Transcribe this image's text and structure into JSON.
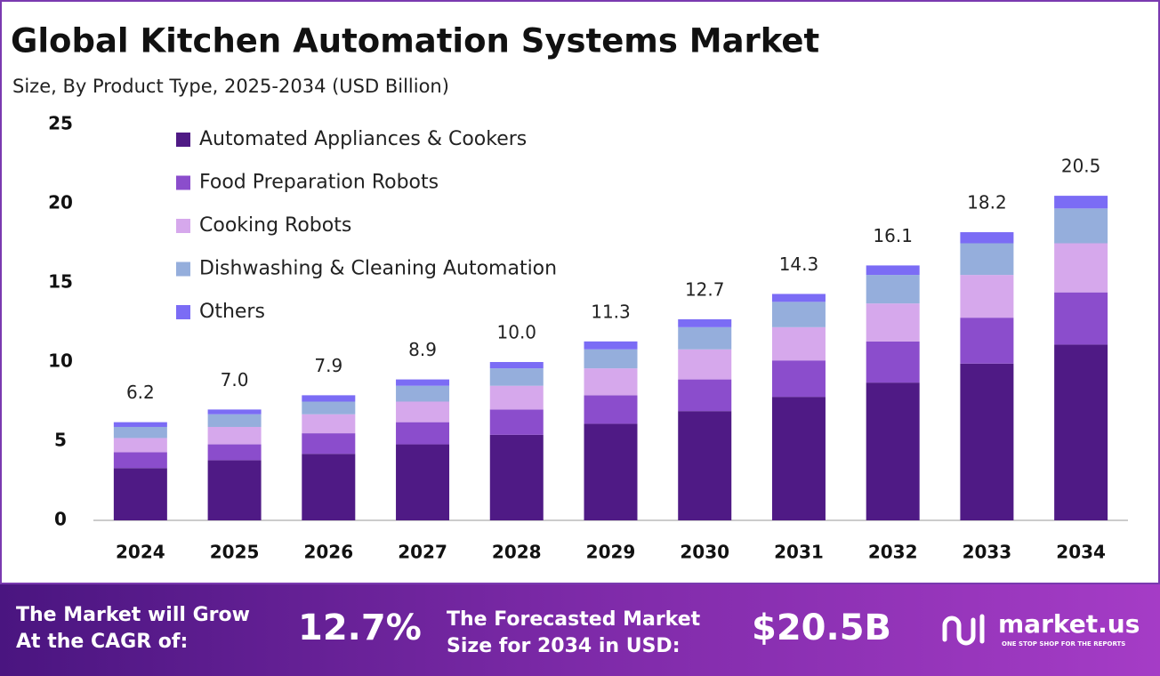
{
  "chart_data": {
    "type": "stacked_bar",
    "title": "Global Kitchen Automation Systems Market",
    "subtitle": "Size, By Product Type, 2025-2034 (USD Billion)",
    "categories": [
      "2024",
      "2025",
      "2026",
      "2027",
      "2028",
      "2029",
      "2030",
      "2031",
      "2032",
      "2033",
      "2034"
    ],
    "series": [
      {
        "name": "Automated Appliances & Cookers",
        "color": "#4f1a85",
        "values": [
          3.3,
          3.8,
          4.2,
          4.8,
          5.4,
          6.1,
          6.9,
          7.8,
          8.7,
          9.9,
          11.1
        ]
      },
      {
        "name": "Food Preparation Robots",
        "color": "#8b4dcc",
        "values": [
          1.0,
          1.0,
          1.3,
          1.4,
          1.6,
          1.8,
          2.0,
          2.3,
          2.6,
          2.9,
          3.3
        ]
      },
      {
        "name": "Cooking Robots",
        "color": "#d6a8ec",
        "values": [
          0.9,
          1.1,
          1.2,
          1.3,
          1.5,
          1.7,
          1.9,
          2.1,
          2.4,
          2.7,
          3.1
        ]
      },
      {
        "name": "Dishwashing & Cleaning Automation",
        "color": "#95aedc",
        "values": [
          0.7,
          0.8,
          0.8,
          1.0,
          1.1,
          1.2,
          1.4,
          1.6,
          1.8,
          2.0,
          2.2
        ]
      },
      {
        "name": "Others",
        "color": "#7b6cf5",
        "values": [
          0.3,
          0.3,
          0.4,
          0.4,
          0.4,
          0.5,
          0.5,
          0.5,
          0.6,
          0.7,
          0.8
        ]
      }
    ],
    "totals": [
      6.2,
      7.0,
      7.9,
      8.9,
      10.0,
      11.3,
      12.7,
      14.3,
      16.1,
      18.2,
      20.5
    ],
    "total_labels": [
      "6.2",
      "7.0",
      "7.9",
      "8.9",
      "10.0",
      "11.3",
      "12.7",
      "14.3",
      "16.1",
      "18.2",
      "20.5"
    ],
    "ylim": [
      0,
      25
    ],
    "yticks": [
      0,
      5,
      10,
      15,
      20,
      25
    ],
    "grid": false,
    "legend": "top-left"
  },
  "footer": {
    "cagr_label": [
      "The Market will Grow",
      "At the CAGR of:"
    ],
    "cagr_value": "12.7%",
    "forecast_label": [
      "The Forecasted Market",
      "Size for 2034 in USD:"
    ],
    "forecast_value": "$20.5B",
    "brand": "market.us",
    "tagline": "ONE STOP SHOP FOR THE REPORTS"
  }
}
